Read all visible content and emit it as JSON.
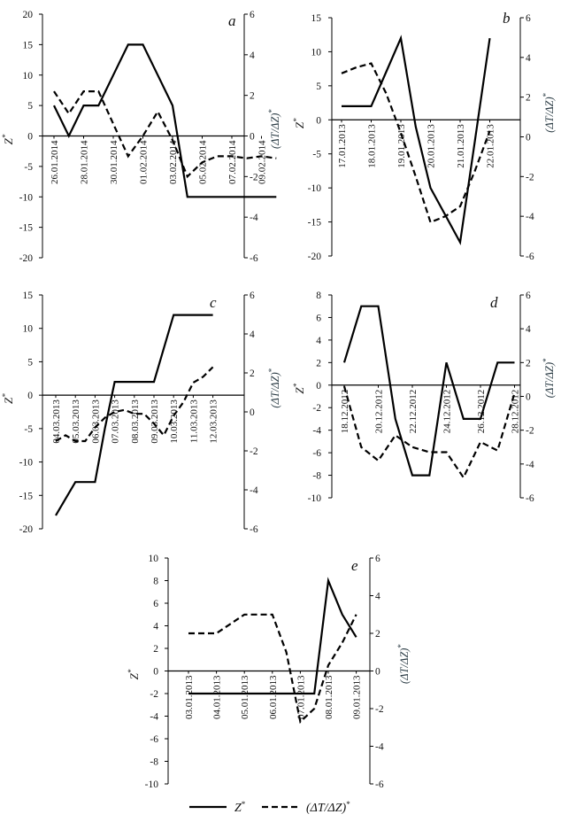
{
  "chart_data": [
    {
      "type": "line",
      "panel": "a",
      "xlabel_left": "Z*",
      "ylabel_left_main": "Z",
      "ylabel_left_sup": "*",
      "ylabel_right_main": "(ΔT/ΔZ)",
      "ylabel_right_sup": "*",
      "ylim_left": [
        -20,
        20
      ],
      "yticks_left": [
        -20,
        -15,
        -10,
        -5,
        0,
        5,
        10,
        15,
        20
      ],
      "ylim_right": [
        -6,
        6
      ],
      "yticks_right": [
        -6,
        -4,
        -2,
        0,
        2,
        4,
        6
      ],
      "xticks": [
        "26.01.2014",
        "28.01.2014",
        "30.01.2014",
        "01.02.2014",
        "03.02.2014",
        "05.02.2014",
        "07.02.2014",
        "09.02.2014"
      ],
      "series": [
        {
          "name": "Z*",
          "axis": "left",
          "x": [
            0,
            0.5,
            1,
            1.5,
            2,
            2.5,
            3,
            3.5,
            4,
            4.5,
            5,
            5.5,
            6,
            6.5,
            7,
            7.5
          ],
          "values": [
            5,
            0,
            5,
            5,
            10,
            15,
            15,
            10,
            5,
            -10,
            -10,
            -10,
            -10,
            -10,
            -10,
            -10
          ]
        },
        {
          "name": "(ΔT/ΔZ)*",
          "axis": "right",
          "x": [
            0,
            0.5,
            1,
            1.5,
            2,
            2.5,
            3,
            3.5,
            4,
            4.5,
            5,
            5.5,
            6,
            6.5,
            7,
            7.5
          ],
          "values": [
            2.2,
            1.1,
            2.2,
            2.2,
            0.6,
            -1.0,
            0,
            1.2,
            -0.2,
            -2.0,
            -1.3,
            -1.0,
            -1.0,
            -1.1,
            -1.0,
            -1.1
          ]
        }
      ]
    },
    {
      "type": "line",
      "panel": "b",
      "ylabel_left_main": "Z",
      "ylabel_left_sup": "*",
      "ylabel_right_main": "(ΔT/ΔZ)",
      "ylabel_right_sup": "*",
      "ylim_left": [
        -20,
        15
      ],
      "yticks_left": [
        -20,
        -15,
        -10,
        -5,
        0,
        5,
        10,
        15
      ],
      "ylim_right": [
        -6,
        6
      ],
      "yticks_right": [
        -6,
        -4,
        -2,
        0,
        2,
        4,
        6
      ],
      "xticks": [
        "17.01.2013",
        "18.01.2013",
        "19.01.2013",
        "20.01.2013",
        "21.01.2013",
        "22.01.2013"
      ],
      "series": [
        {
          "name": "Z*",
          "axis": "left",
          "x": [
            0,
            0.5,
            1,
            1.5,
            2,
            2.5,
            3,
            3.5,
            4,
            4.5,
            5
          ],
          "values": [
            2,
            2,
            2,
            7,
            12,
            -1,
            -10,
            -14,
            -18,
            -3,
            12
          ]
        },
        {
          "name": "(ΔT/ΔZ)*",
          "axis": "right",
          "x": [
            0,
            0.5,
            1,
            1.5,
            2,
            2.5,
            3,
            3.5,
            4,
            4.5,
            5
          ],
          "values": [
            3.2,
            3.5,
            3.7,
            2.2,
            0.2,
            -2.0,
            -4.3,
            -4.0,
            -3.5,
            -1.7,
            0.3
          ]
        }
      ]
    },
    {
      "type": "line",
      "panel": "c",
      "ylabel_left_main": "Z",
      "ylabel_left_sup": "*",
      "ylabel_right_main": "(ΔT/ΔZ)",
      "ylabel_right_sup": "*",
      "ylim_left": [
        -20,
        15
      ],
      "yticks_left": [
        -20,
        -15,
        -10,
        -5,
        0,
        5,
        10,
        15
      ],
      "ylim_right": [
        -6,
        6
      ],
      "yticks_right": [
        -6,
        -4,
        -2,
        0,
        2,
        4,
        6
      ],
      "xticks": [
        "04.03.2013",
        "05.03.2013",
        "06.03.2013",
        "07.03.2013",
        "08.03.2013",
        "09.03.2013",
        "10.03.2013",
        "11.03.2013",
        "12.03.2013"
      ],
      "series": [
        {
          "name": "Z*",
          "axis": "left",
          "x": [
            0,
            0.5,
            1,
            1.5,
            2,
            2.5,
            3,
            3.5,
            4,
            4.5,
            5,
            5.5,
            6,
            6.5,
            7,
            7.5,
            8
          ],
          "values": [
            -18,
            -15.5,
            -13,
            -13,
            -13,
            -5,
            2,
            2,
            2,
            2,
            2,
            7,
            12,
            12,
            12,
            12,
            12
          ]
        },
        {
          "name": "(ΔT/ΔZ)*",
          "axis": "right",
          "x": [
            0,
            0.5,
            1,
            1.5,
            2,
            2.5,
            3,
            3.5,
            4,
            4.5,
            5,
            5.5,
            6,
            6.5,
            7,
            7.5,
            8
          ],
          "values": [
            -1.5,
            -1.2,
            -1.5,
            -1.5,
            -0.8,
            -0.3,
            0,
            0.1,
            -0.1,
            -0.1,
            -0.6,
            -1.2,
            -0.2,
            0.5,
            1.5,
            1.8,
            2.3
          ]
        }
      ]
    },
    {
      "type": "line",
      "panel": "d",
      "ylabel_left_main": "Z",
      "ylabel_left_sup": "*",
      "ylabel_right_main": "(ΔT/ΔZ)",
      "ylabel_right_sup": "*",
      "ylim_left": [
        -10,
        8
      ],
      "yticks_left": [
        -10,
        -8,
        -6,
        -4,
        -2,
        0,
        2,
        4,
        6,
        8
      ],
      "ylim_right": [
        -6,
        6
      ],
      "yticks_right": [
        -6,
        -4,
        -2,
        0,
        2,
        4,
        6
      ],
      "xticks": [
        "18.12.2012",
        "20.12.2012",
        "22.12.2012",
        "24.12.2012",
        "26.12.2012",
        "28.12.2012"
      ],
      "series": [
        {
          "name": "Z*",
          "axis": "left",
          "x": [
            0,
            0.5,
            1,
            1.5,
            2,
            2.5,
            3,
            3.5,
            4,
            4.5,
            5
          ],
          "values": [
            2,
            7,
            7,
            -3,
            -8,
            -8,
            2,
            -3,
            -3,
            2,
            2
          ]
        },
        {
          "name": "(ΔT/ΔZ)*",
          "axis": "right",
          "x": [
            0,
            0.5,
            1,
            1.5,
            2,
            2.5,
            3,
            3.5,
            4,
            4.5,
            5
          ],
          "values": [
            0.6,
            -3.0,
            -3.8,
            -2.3,
            -3.0,
            -3.3,
            -3.3,
            -4.8,
            -2.7,
            -3.2,
            0.2
          ]
        }
      ]
    },
    {
      "type": "line",
      "panel": "e",
      "ylabel_left_main": "Z",
      "ylabel_left_sup": "*",
      "ylabel_right_main": "(ΔT/ΔZ)",
      "ylabel_right_sup": "*",
      "ylim_left": [
        -10,
        10
      ],
      "yticks_left": [
        -10,
        -8,
        -6,
        -4,
        -2,
        0,
        2,
        4,
        6,
        8,
        10
      ],
      "ylim_right": [
        -6,
        6
      ],
      "yticks_right": [
        -6,
        -4,
        -2,
        0,
        2,
        4,
        6
      ],
      "xticks": [
        "03.01.2013",
        "04.01.2013",
        "05.01.2013",
        "06.01.2013",
        "07.01.2013",
        "08.01.2013",
        "09.01.2013"
      ],
      "series": [
        {
          "name": "Z*",
          "axis": "left",
          "x": [
            0,
            0.5,
            1,
            1.5,
            2,
            2.5,
            3,
            3.5,
            4,
            4.5,
            5,
            5.5,
            6
          ],
          "values": [
            -2,
            -2,
            -2,
            -2,
            -2,
            -2,
            -2,
            -2,
            -2,
            -2,
            8,
            5,
            3
          ]
        },
        {
          "name": "(ΔT/ΔZ)*",
          "axis": "right",
          "x": [
            0,
            0.5,
            1,
            1.5,
            2,
            2.5,
            3,
            3.5,
            4,
            4.5,
            5,
            5.5,
            6
          ],
          "values": [
            2,
            2,
            2,
            2.5,
            3,
            3,
            3,
            1,
            -2.7,
            -2,
            0.3,
            1.5,
            3
          ]
        }
      ]
    }
  ],
  "legend": {
    "z_main": "Z",
    "z_sup": "*",
    "dt_main": "(ΔT/ΔZ)",
    "dt_sup": "*"
  }
}
